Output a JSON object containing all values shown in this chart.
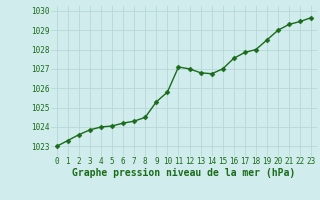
{
  "x": [
    0,
    1,
    2,
    3,
    4,
    5,
    6,
    7,
    8,
    9,
    10,
    11,
    12,
    13,
    14,
    15,
    16,
    17,
    18,
    19,
    20,
    21,
    22,
    23
  ],
  "y": [
    1023.0,
    1023.3,
    1023.6,
    1023.85,
    1024.0,
    1024.05,
    1024.2,
    1024.3,
    1024.5,
    1025.3,
    1025.8,
    1027.1,
    1027.0,
    1026.8,
    1026.75,
    1027.0,
    1027.55,
    1027.85,
    1028.0,
    1028.5,
    1029.0,
    1029.3,
    1029.45,
    1029.65
  ],
  "line_color": "#1a6b1a",
  "marker_color": "#1a6b1a",
  "bg_color": "#d0ecec",
  "grid_color": "#b8d8d8",
  "xlabel": "Graphe pression niveau de la mer (hPa)",
  "xlabel_color": "#1a6b1a",
  "ylim": [
    1022.5,
    1030.25
  ],
  "yticks": [
    1023,
    1024,
    1025,
    1026,
    1027,
    1028,
    1029,
    1030
  ],
  "xticks": [
    0,
    1,
    2,
    3,
    4,
    5,
    6,
    7,
    8,
    9,
    10,
    11,
    12,
    13,
    14,
    15,
    16,
    17,
    18,
    19,
    20,
    21,
    22,
    23
  ],
  "tick_color": "#1a6b1a",
  "tick_fontsize": 5.5,
  "xlabel_fontsize": 7.0,
  "line_width": 1.0,
  "marker_size": 2.5
}
